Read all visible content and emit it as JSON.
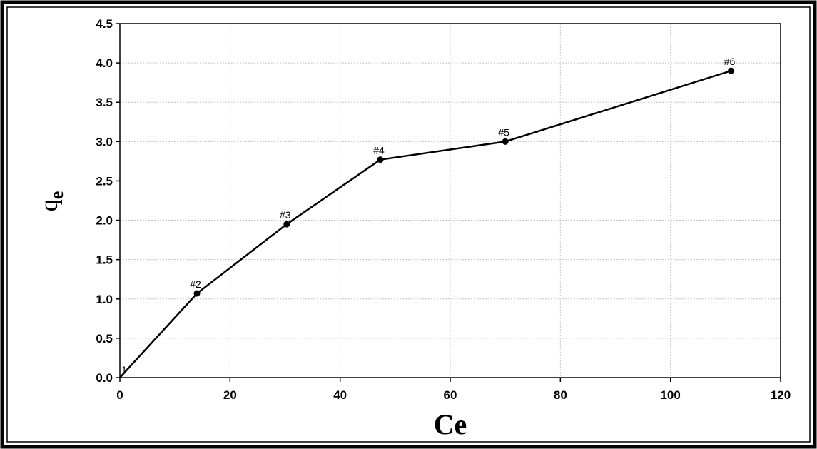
{
  "chart_data": {
    "type": "line",
    "title": "",
    "xlabel": "Ce",
    "ylabel_main": "q",
    "ylabel_sub": "e",
    "xlim": [
      0,
      120
    ],
    "ylim": [
      0,
      4.5
    ],
    "xticks": [
      {
        "value": 0,
        "label": "0"
      },
      {
        "value": 20,
        "label": "20"
      },
      {
        "value": 40,
        "label": "40"
      },
      {
        "value": 60,
        "label": "60"
      },
      {
        "value": 80,
        "label": "80"
      },
      {
        "value": 100,
        "label": "100"
      },
      {
        "value": 120,
        "label": "120"
      }
    ],
    "yticks": [
      {
        "value": 0,
        "label": "0.0"
      },
      {
        "value": 0.5,
        "label": "0.5"
      },
      {
        "value": 1.0,
        "label": "1.0"
      },
      {
        "value": 1.5,
        "label": "1.5"
      },
      {
        "value": 2.0,
        "label": "2.0"
      },
      {
        "value": 2.5,
        "label": "2.5"
      },
      {
        "value": 3.0,
        "label": "3.0"
      },
      {
        "value": 3.5,
        "label": "3.5"
      },
      {
        "value": 4.0,
        "label": "4.0"
      },
      {
        "value": 4.5,
        "label": "4.5"
      }
    ],
    "grid": true,
    "series": [
      {
        "color": "#000000",
        "points": [
          {
            "x": 0,
            "y": 0,
            "label": "1"
          },
          {
            "x": 14,
            "y": 1.07,
            "label": "#2"
          },
          {
            "x": 30.3,
            "y": 1.95,
            "label": "#3"
          },
          {
            "x": 47.3,
            "y": 2.77,
            "label": "#4"
          },
          {
            "x": 70,
            "y": 3.0,
            "label": "#5"
          },
          {
            "x": 111,
            "y": 3.9,
            "label": "#6"
          }
        ]
      }
    ]
  }
}
